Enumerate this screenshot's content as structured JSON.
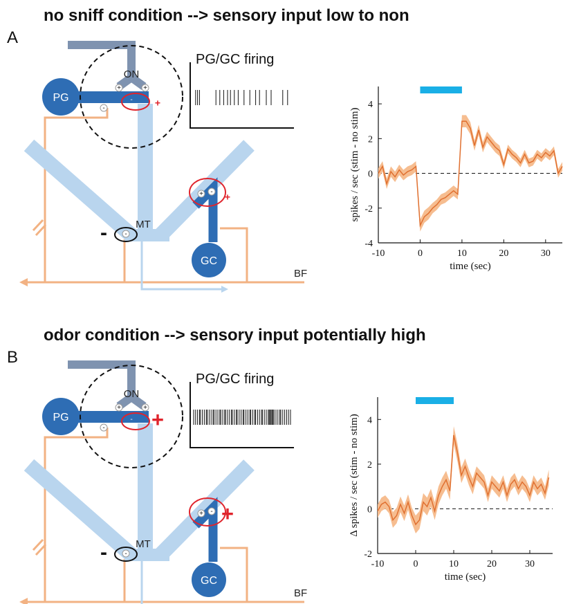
{
  "panels": [
    {
      "letter": "A",
      "heading": "no sniff condition --> sensory input low to non",
      "firing_label": "PG/GC firing",
      "labels": {
        "on": "ON",
        "pg": "PG",
        "mt": "MT",
        "gc": "GC",
        "bf": "BF"
      },
      "signs": [
        "+",
        "+",
        "-",
        "+",
        "-",
        "+",
        "-",
        "+",
        "-",
        "-"
      ],
      "spikes": [
        2,
        4,
        6,
        23,
        27,
        31,
        35,
        38,
        42,
        46,
        52,
        58,
        64,
        68,
        75,
        80,
        92,
        97
      ]
    },
    {
      "letter": "B",
      "heading": "odor condition --> sensory input potentially high",
      "firing_label": "PG/GC firing",
      "labels": {
        "on": "ON",
        "pg": "PG",
        "mt": "MT",
        "gc": "GC",
        "bf": "BF"
      },
      "signs": [
        "+",
        "+",
        "-",
        "+",
        "-",
        "+",
        "-",
        "+",
        "-",
        "-"
      ],
      "spikes": [
        0,
        2,
        4,
        6,
        7,
        9,
        11,
        13,
        14,
        16,
        18,
        20,
        21,
        23,
        25,
        27,
        28,
        30,
        32,
        33,
        35,
        37,
        39,
        40,
        42,
        44,
        45,
        47,
        49,
        51,
        52,
        54,
        56,
        58,
        59,
        61,
        63,
        64,
        66,
        68,
        70,
        71,
        73,
        75,
        77,
        78,
        79,
        80,
        81,
        82,
        83,
        85,
        87,
        89,
        90,
        92,
        94,
        96,
        98,
        100
      ]
    }
  ],
  "chart_data": [
    {
      "type": "line",
      "ylabel": "spikes / sec (stim - no stim)",
      "xlabel": "time (sec)",
      "xlim": [
        -10,
        34
      ],
      "xticks": [
        -10,
        0,
        10,
        20,
        30
      ],
      "ylim": [
        -4,
        5
      ],
      "yticks": [
        -4,
        -2,
        0,
        2,
        4
      ],
      "reference_line": 0,
      "stimulus": [
        0,
        10
      ],
      "stimulus_color": "#1aafe6",
      "color": "#e07030",
      "band_color": "#f6bd90",
      "x": [
        -10,
        -9,
        -8,
        -7,
        -6,
        -5,
        -4,
        -3,
        -2,
        -1,
        0,
        1,
        2,
        3,
        4,
        5,
        6,
        7,
        8,
        9,
        10,
        11,
        12,
        13,
        14,
        15,
        16,
        17,
        18,
        19,
        20,
        21,
        22,
        23,
        24,
        25,
        26,
        27,
        28,
        29,
        30,
        31,
        32,
        33,
        34
      ],
      "values": [
        0.0,
        0.4,
        -0.6,
        0.1,
        -0.2,
        0.2,
        -0.1,
        0.1,
        0.2,
        0.4,
        -3.0,
        -2.5,
        -2.3,
        -2.0,
        -1.8,
        -1.5,
        -1.4,
        -1.2,
        -1.0,
        -1.2,
        3.0,
        3.0,
        2.6,
        1.6,
        2.5,
        1.5,
        2.1,
        1.8,
        1.5,
        1.3,
        0.5,
        1.4,
        1.1,
        0.9,
        0.6,
        1.1,
        0.6,
        0.7,
        1.1,
        0.9,
        1.2,
        1.0,
        1.3,
        0.0,
        0.4
      ],
      "error": [
        0.3,
        0.3,
        0.3,
        0.3,
        0.3,
        0.3,
        0.3,
        0.3,
        0.3,
        0.3,
        0.35,
        0.35,
        0.35,
        0.3,
        0.3,
        0.3,
        0.3,
        0.3,
        0.3,
        0.3,
        0.35,
        0.35,
        0.35,
        0.3,
        0.3,
        0.3,
        0.3,
        0.3,
        0.3,
        0.3,
        0.25,
        0.25,
        0.25,
        0.25,
        0.25,
        0.25,
        0.25,
        0.25,
        0.25,
        0.25,
        0.25,
        0.25,
        0.25,
        0.25,
        0.25
      ]
    },
    {
      "type": "line",
      "ylabel": "Δ spikes / sec (stim - no stim)",
      "xlabel": "time (sec)",
      "xlim": [
        -10,
        36
      ],
      "xticks": [
        -10,
        0,
        10,
        20,
        30
      ],
      "ylim": [
        -2,
        5
      ],
      "yticks": [
        -2,
        0,
        2,
        4
      ],
      "reference_line": 0,
      "stimulus": [
        0,
        10
      ],
      "stimulus_color": "#1aafe6",
      "color": "#e07030",
      "band_color": "#f6bd90",
      "x": [
        -10,
        -9,
        -8,
        -7,
        -6,
        -5,
        -4,
        -3,
        -2,
        -1,
        0,
        1,
        2,
        3,
        4,
        5,
        6,
        7,
        8,
        9,
        10,
        11,
        12,
        13,
        14,
        15,
        16,
        17,
        18,
        19,
        20,
        21,
        22,
        23,
        24,
        25,
        26,
        27,
        28,
        29,
        30,
        31,
        32,
        33,
        34,
        35
      ],
      "values": [
        -0.1,
        0.2,
        0.3,
        0.1,
        -0.5,
        -0.3,
        0.2,
        -0.2,
        0.3,
        -0.3,
        -0.7,
        -0.5,
        0.3,
        0.1,
        0.5,
        -0.1,
        0.6,
        1.0,
        1.3,
        0.8,
        3.3,
        2.5,
        1.5,
        1.9,
        1.4,
        1.0,
        1.6,
        1.4,
        1.2,
        0.6,
        1.2,
        1.0,
        0.8,
        1.2,
        0.6,
        1.1,
        1.3,
        0.9,
        1.2,
        1.0,
        0.6,
        1.2,
        0.9,
        1.1,
        0.7,
        1.4
      ],
      "error": [
        0.3,
        0.3,
        0.3,
        0.3,
        0.35,
        0.35,
        0.35,
        0.35,
        0.35,
        0.35,
        0.4,
        0.4,
        0.4,
        0.4,
        0.4,
        0.4,
        0.4,
        0.4,
        0.4,
        0.4,
        0.4,
        0.4,
        0.35,
        0.35,
        0.35,
        0.35,
        0.3,
        0.3,
        0.3,
        0.3,
        0.3,
        0.3,
        0.3,
        0.3,
        0.3,
        0.3,
        0.3,
        0.3,
        0.3,
        0.3,
        0.3,
        0.3,
        0.3,
        0.3,
        0.3,
        0.35
      ]
    }
  ]
}
